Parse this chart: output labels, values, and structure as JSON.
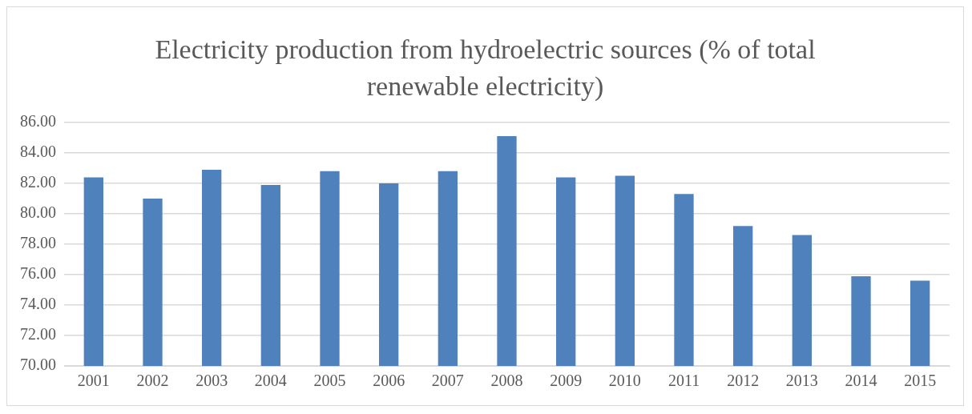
{
  "chart_data": {
    "type": "bar",
    "title": "Electricity production from hydroelectric sources (% of total renewable electricity)",
    "categories": [
      "2001",
      "2002",
      "2003",
      "2004",
      "2005",
      "2006",
      "2007",
      "2008",
      "2009",
      "2010",
      "2011",
      "2012",
      "2013",
      "2014",
      "2015"
    ],
    "values": [
      82.4,
      81.0,
      82.9,
      81.9,
      82.8,
      82.0,
      82.8,
      85.1,
      82.4,
      82.5,
      81.3,
      79.2,
      78.6,
      75.9,
      75.6
    ],
    "color": "#4f81bd",
    "ylim": [
      70,
      86
    ],
    "yticks": [
      {
        "value": 70,
        "label": "70.00"
      },
      {
        "value": 72,
        "label": "72.00"
      },
      {
        "value": 74,
        "label": "74.00"
      },
      {
        "value": 76,
        "label": "76.00"
      },
      {
        "value": 78,
        "label": "78.00"
      },
      {
        "value": 80,
        "label": "80.00"
      },
      {
        "value": 82,
        "label": "82.00"
      },
      {
        "value": 84,
        "label": "84.00"
      },
      {
        "value": 86,
        "label": "86.00"
      }
    ],
    "grid": "y"
  }
}
